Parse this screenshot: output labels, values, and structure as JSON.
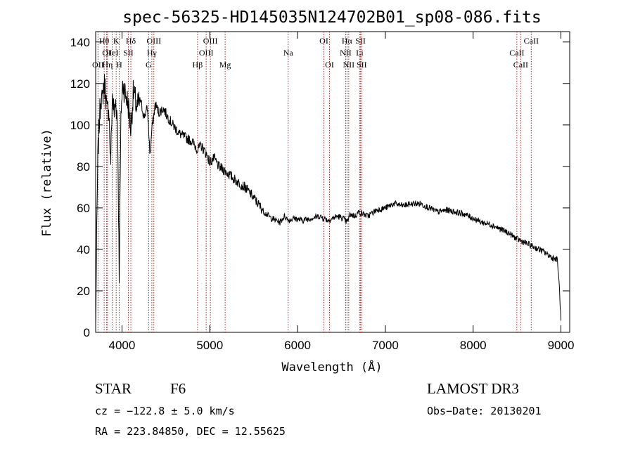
{
  "chart_data": {
    "type": "line",
    "title": "spec-56325-HD145035N124702B01_sp08-086.fits",
    "xlabel": "Wavelength (Å)",
    "ylabel": "Flux (relative)",
    "xlim": [
      3700,
      9100
    ],
    "ylim": [
      0,
      145
    ],
    "xticks": [
      4000,
      5000,
      6000,
      7000,
      8000,
      9000
    ],
    "yticks": [
      0,
      20,
      40,
      60,
      80,
      100,
      120,
      140
    ],
    "series": [
      {
        "name": "flux",
        "x": [
          3700,
          3710,
          3725,
          3740,
          3760,
          3775,
          3790,
          3810,
          3830,
          3850,
          3870,
          3890,
          3910,
          3930,
          3950,
          3968,
          3990,
          4010,
          4040,
          4070,
          4101,
          4130,
          4170,
          4210,
          4250,
          4290,
          4320,
          4340,
          4380,
          4420,
          4470,
          4520,
          4580,
          4650,
          4720,
          4800,
          4861,
          4900,
          4960,
          5000,
          5050,
          5100,
          5170,
          5250,
          5330,
          5400,
          5480,
          5550,
          5620,
          5700,
          5760,
          5800,
          5850,
          5900,
          5960,
          6050,
          6150,
          6250,
          6350,
          6450,
          6520,
          6563,
          6600,
          6650,
          6700,
          6800,
          6900,
          7000,
          7100,
          7200,
          7300,
          7400,
          7500,
          7600,
          7700,
          7800,
          7900,
          8000,
          8100,
          8200,
          8300,
          8400,
          8500,
          8600,
          8700,
          8800,
          8900,
          8960,
          8985,
          9000
        ],
        "y": [
          2,
          40,
          85,
          100,
          115,
          110,
          120,
          118,
          105,
          110,
          80,
          115,
          105,
          112,
          100,
          28,
          108,
          120,
          115,
          110,
          98,
          116,
          108,
          112,
          104,
          108,
          85,
          98,
          110,
          106,
          108,
          104,
          100,
          96,
          94,
          92,
          88,
          90,
          86,
          82,
          84,
          80,
          78,
          75,
          72,
          70,
          66,
          62,
          58,
          55,
          54,
          53,
          56,
          54,
          55,
          54,
          55,
          56,
          54,
          56,
          55,
          53,
          57,
          56,
          58,
          56,
          59,
          60,
          62,
          61,
          62,
          62,
          60,
          58,
          59,
          58,
          57,
          55,
          53,
          52,
          50,
          48,
          45,
          43,
          41,
          39,
          36,
          35,
          20,
          5
        ]
      }
    ],
    "line_markers": [
      {
        "label": "Hθ",
        "wavelength": 3797,
        "row": 1
      },
      {
        "label": "OI",
        "wavelength": 3825,
        "row": 2
      },
      {
        "label": "OII",
        "wavelength": 3727,
        "row": 3
      },
      {
        "label": "K",
        "wavelength": 3934,
        "row": 1
      },
      {
        "label": "HeI",
        "wavelength": 3889,
        "row": 2
      },
      {
        "label": "Hη",
        "wavelength": 3835,
        "row": 3
      },
      {
        "label": "H",
        "wavelength": 3968,
        "row": 3
      },
      {
        "label": "SII",
        "wavelength": 4072,
        "row": 2
      },
      {
        "label": "Hδ",
        "wavelength": 4101,
        "row": 1
      },
      {
        "label": "OIII",
        "wavelength": 4363,
        "row": 1
      },
      {
        "label": "Hγ",
        "wavelength": 4340,
        "row": 2
      },
      {
        "label": "G",
        "wavelength": 4304,
        "row": 3
      },
      {
        "label": "Hβ",
        "wavelength": 4861,
        "row": 3
      },
      {
        "label": "OIII",
        "wavelength": 4959,
        "row": 2
      },
      {
        "label": "OIII",
        "wavelength": 5007,
        "row": 1
      },
      {
        "label": "Mg",
        "wavelength": 5175,
        "row": 3
      },
      {
        "label": "Na",
        "wavelength": 5893,
        "row": 2
      },
      {
        "label": "OI",
        "wavelength": 6300,
        "row": 1
      },
      {
        "label": "OI",
        "wavelength": 6364,
        "row": 3
      },
      {
        "label": "Hα",
        "wavelength": 6563,
        "row": 1
      },
      {
        "label": "NII",
        "wavelength": 6548,
        "row": 2
      },
      {
        "label": "NII",
        "wavelength": 6583,
        "row": 3
      },
      {
        "label": "SII",
        "wavelength": 6717,
        "row": 1
      },
      {
        "label": "Li",
        "wavelength": 6708,
        "row": 2
      },
      {
        "label": "SII",
        "wavelength": 6731,
        "row": 3
      },
      {
        "label": "CaII",
        "wavelength": 8662,
        "row": 1
      },
      {
        "label": "CaII",
        "wavelength": 8498,
        "row": 2
      },
      {
        "label": "CaII",
        "wavelength": 8542,
        "row": 3
      }
    ],
    "colors": {
      "spectrum": "#000000",
      "markers": "#b22222",
      "axes": "#000000"
    }
  },
  "info": {
    "object_class": "STAR",
    "subclass": "F6",
    "survey": "LAMOST DR3",
    "cz": "cz = −122.8 ± 5.0 km/s",
    "obs_date": "Obs−Date: 20130201",
    "coords": "RA = 223.84850, DEC =  12.55625"
  }
}
